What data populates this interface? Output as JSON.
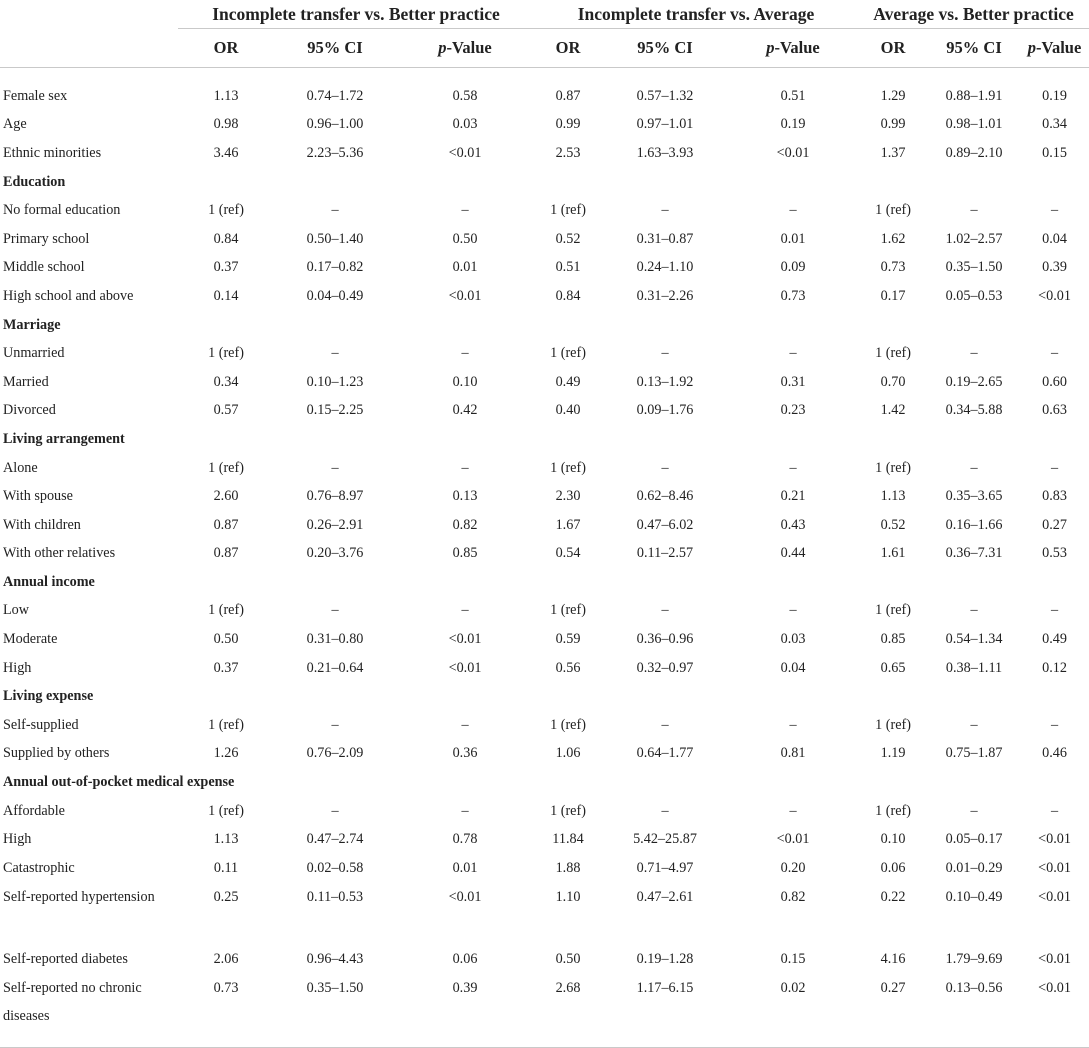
{
  "groups": [
    "Incomplete transfer vs. Better practice",
    "Incomplete transfer vs. Average",
    "Average vs. Better practice"
  ],
  "subheaders": {
    "or": "OR",
    "ci": "95% CI",
    "p_italic": "p",
    "p_rest": "-Value"
  },
  "rows": [
    {
      "type": "data",
      "label": "Female sex",
      "v": [
        "1.13",
        "0.74–1.72",
        "0.58",
        "0.87",
        "0.57–1.32",
        "0.51",
        "1.29",
        "0.88–1.91",
        "0.19"
      ]
    },
    {
      "type": "data",
      "label": "Age",
      "v": [
        "0.98",
        "0.96–1.00",
        "0.03",
        "0.99",
        "0.97–1.01",
        "0.19",
        "0.99",
        "0.98–1.01",
        "0.34"
      ]
    },
    {
      "type": "data",
      "label": "Ethnic minorities",
      "v": [
        "3.46",
        "2.23–5.36",
        "<0.01",
        "2.53",
        "1.63–3.93",
        "<0.01",
        "1.37",
        "0.89–2.10",
        "0.15"
      ]
    },
    {
      "type": "section",
      "label": "Education"
    },
    {
      "type": "data",
      "label": "No formal education",
      "v": [
        "1 (ref)",
        "–",
        "–",
        "1 (ref)",
        "–",
        "–",
        "1 (ref)",
        "–",
        "–"
      ]
    },
    {
      "type": "data",
      "label": "Primary school",
      "v": [
        "0.84",
        "0.50–1.40",
        "0.50",
        "0.52",
        "0.31–0.87",
        "0.01",
        "1.62",
        "1.02–2.57",
        "0.04"
      ]
    },
    {
      "type": "data",
      "label": "Middle school",
      "v": [
        "0.37",
        "0.17–0.82",
        "0.01",
        "0.51",
        "0.24–1.10",
        "0.09",
        "0.73",
        "0.35–1.50",
        "0.39"
      ]
    },
    {
      "type": "data",
      "label": "High school and above",
      "v": [
        "0.14",
        "0.04–0.49",
        "<0.01",
        "0.84",
        "0.31–2.26",
        "0.73",
        "0.17",
        "0.05–0.53",
        "<0.01"
      ]
    },
    {
      "type": "section",
      "label": "Marriage"
    },
    {
      "type": "data",
      "label": "Unmarried",
      "v": [
        "1 (ref)",
        "–",
        "–",
        "1 (ref)",
        "–",
        "–",
        "1 (ref)",
        "–",
        "–"
      ]
    },
    {
      "type": "data",
      "label": "Married",
      "v": [
        "0.34",
        "0.10–1.23",
        "0.10",
        "0.49",
        "0.13–1.92",
        "0.31",
        "0.70",
        "0.19–2.65",
        "0.60"
      ]
    },
    {
      "type": "data",
      "label": "Divorced",
      "v": [
        "0.57",
        "0.15–2.25",
        "0.42",
        "0.40",
        "0.09–1.76",
        "0.23",
        "1.42",
        "0.34–5.88",
        "0.63"
      ]
    },
    {
      "type": "section",
      "label": "Living arrangement"
    },
    {
      "type": "data",
      "label": "Alone",
      "v": [
        "1 (ref)",
        "–",
        "–",
        "1 (ref)",
        "–",
        "–",
        "1 (ref)",
        "–",
        "–"
      ]
    },
    {
      "type": "data",
      "label": "With spouse",
      "v": [
        "2.60",
        "0.76–8.97",
        "0.13",
        "2.30",
        "0.62–8.46",
        "0.21",
        "1.13",
        "0.35–3.65",
        "0.83"
      ]
    },
    {
      "type": "data",
      "label": "With children",
      "v": [
        "0.87",
        "0.26–2.91",
        "0.82",
        "1.67",
        "0.47–6.02",
        "0.43",
        "0.52",
        "0.16–1.66",
        "0.27"
      ]
    },
    {
      "type": "data",
      "label": "With other relatives",
      "v": [
        "0.87",
        "0.20–3.76",
        "0.85",
        "0.54",
        "0.11–2.57",
        "0.44",
        "1.61",
        "0.36–7.31",
        "0.53"
      ]
    },
    {
      "type": "section",
      "label": "Annual income"
    },
    {
      "type": "data",
      "label": "Low",
      "v": [
        "1 (ref)",
        "–",
        "–",
        "1 (ref)",
        "–",
        "–",
        "1 (ref)",
        "–",
        "–"
      ]
    },
    {
      "type": "data",
      "label": "Moderate",
      "v": [
        "0.50",
        "0.31–0.80",
        "<0.01",
        "0.59",
        "0.36–0.96",
        "0.03",
        "0.85",
        "0.54–1.34",
        "0.49"
      ]
    },
    {
      "type": "data",
      "label": "High",
      "v": [
        "0.37",
        "0.21–0.64",
        "<0.01",
        "0.56",
        "0.32–0.97",
        "0.04",
        "0.65",
        "0.38–1.11",
        "0.12"
      ]
    },
    {
      "type": "section",
      "label": "Living expense"
    },
    {
      "type": "data",
      "label": "Self-supplied",
      "v": [
        "1 (ref)",
        "–",
        "–",
        "1 (ref)",
        "–",
        "–",
        "1 (ref)",
        "–",
        "–"
      ]
    },
    {
      "type": "data",
      "label": "Supplied by others",
      "v": [
        "1.26",
        "0.76–2.09",
        "0.36",
        "1.06",
        "0.64–1.77",
        "0.81",
        "1.19",
        "0.75–1.87",
        "0.46"
      ]
    },
    {
      "type": "section",
      "label": "Annual out-of-pocket medical expense"
    },
    {
      "type": "data",
      "label": "Affordable",
      "v": [
        "1 (ref)",
        "–",
        "–",
        "1 (ref)",
        "–",
        "–",
        "1 (ref)",
        "–",
        "–"
      ]
    },
    {
      "type": "data",
      "label": "High",
      "v": [
        "1.13",
        "0.47–2.74",
        "0.78",
        "11.84",
        "5.42–25.87",
        "<0.01",
        "0.10",
        "0.05–0.17",
        "<0.01"
      ]
    },
    {
      "type": "data",
      "label": "Catastrophic",
      "v": [
        "0.11",
        "0.02–0.58",
        "0.01",
        "1.88",
        "0.71–4.97",
        "0.20",
        "0.06",
        "0.01–0.29",
        "<0.01"
      ]
    },
    {
      "type": "wrap",
      "label": "Self-reported hypertension",
      "v": [
        "0.25",
        "0.11–0.53",
        "<0.01",
        "1.10",
        "0.47–2.61",
        "0.82",
        "0.22",
        "0.10–0.49",
        "<0.01"
      ]
    },
    {
      "type": "data",
      "label": "Self-reported diabetes",
      "v": [
        "2.06",
        "0.96–4.43",
        "0.06",
        "0.50",
        "0.19–1.28",
        "0.15",
        "4.16",
        "1.79–9.69",
        "<0.01"
      ]
    },
    {
      "type": "wrap",
      "label": "Self-reported no chronic diseases",
      "v": [
        "0.73",
        "0.35–1.50",
        "0.39",
        "2.68",
        "1.17–6.15",
        "0.02",
        "0.27",
        "0.13–0.56",
        "<0.01"
      ]
    }
  ]
}
